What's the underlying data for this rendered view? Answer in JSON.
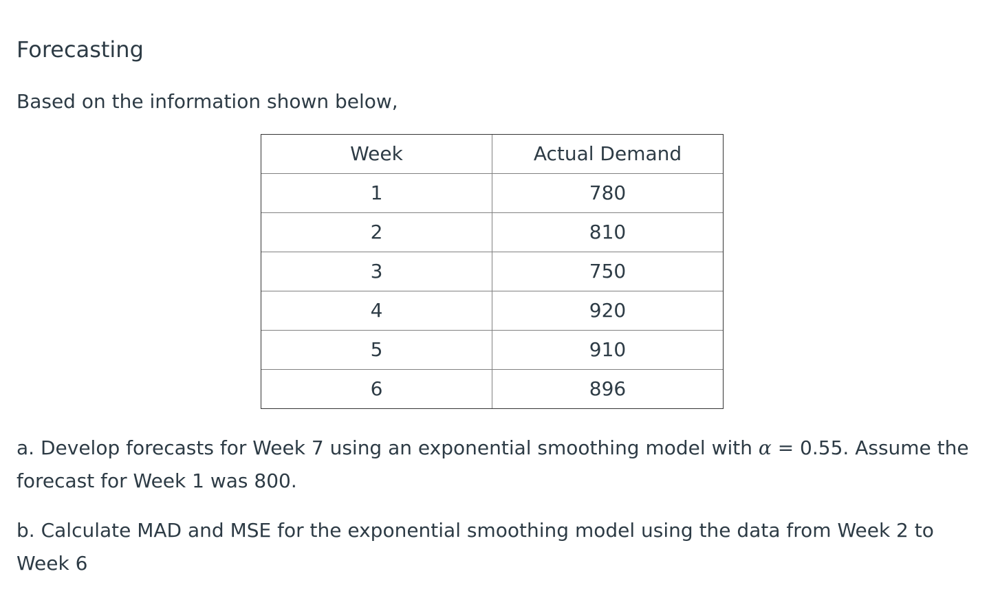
{
  "title": "Forecasting",
  "intro": "Based on the information shown below,",
  "table": {
    "headers": [
      "Week",
      "Actual Demand"
    ],
    "rows": [
      [
        "1",
        "780"
      ],
      [
        "2",
        "810"
      ],
      [
        "3",
        "750"
      ],
      [
        "4",
        "920"
      ],
      [
        "5",
        "910"
      ],
      [
        "6",
        "896"
      ]
    ]
  },
  "question_a": {
    "before_symbol": "a. Develop forecasts for Week 7 using an exponential smoothing model with ",
    "symbol": "α",
    "after_symbol": " = 0.55.  Assume the forecast for Week 1 was 800."
  },
  "question_b": "b. Calculate MAD and MSE for the exponential smoothing model using the data from Week 2 to Week 6"
}
